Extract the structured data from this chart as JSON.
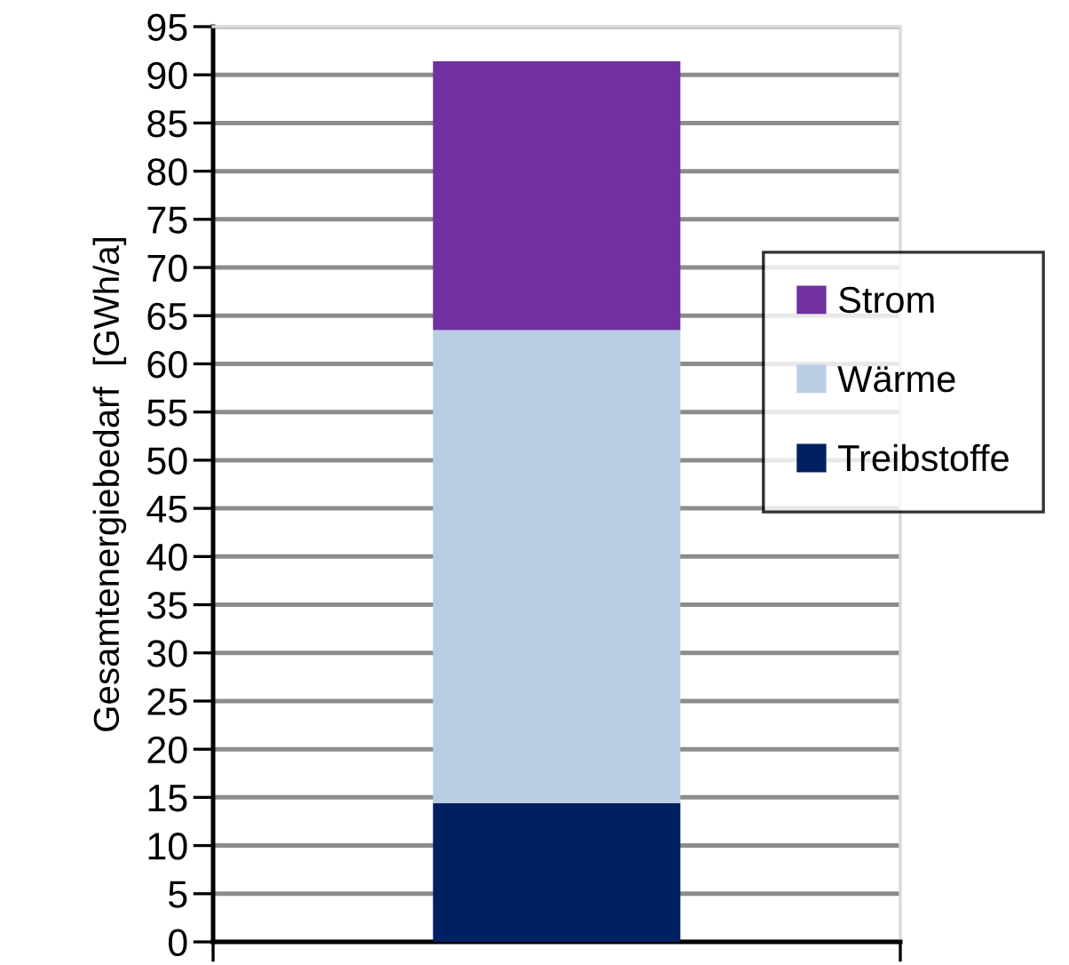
{
  "chart_data": {
    "type": "bar",
    "stacked": true,
    "ylabel": "Gesamtenergiebedarf  [GWh/a]",
    "categories": [
      null
    ],
    "series": [
      {
        "name": "Treibstoffe",
        "color": "#002060",
        "values": [
          14.4
        ]
      },
      {
        "name": "Wärme",
        "color": "#b9cde5",
        "values": [
          49.1
        ]
      },
      {
        "name": "Strom",
        "color": "#7030a0",
        "values": [
          27.9
        ]
      }
    ],
    "ylim": [
      0,
      95
    ],
    "yticks": [
      0,
      5,
      10,
      15,
      20,
      25,
      30,
      35,
      40,
      45,
      50,
      55,
      60,
      65,
      70,
      75,
      80,
      85,
      90,
      95
    ],
    "grid": "y",
    "legend": "right"
  }
}
